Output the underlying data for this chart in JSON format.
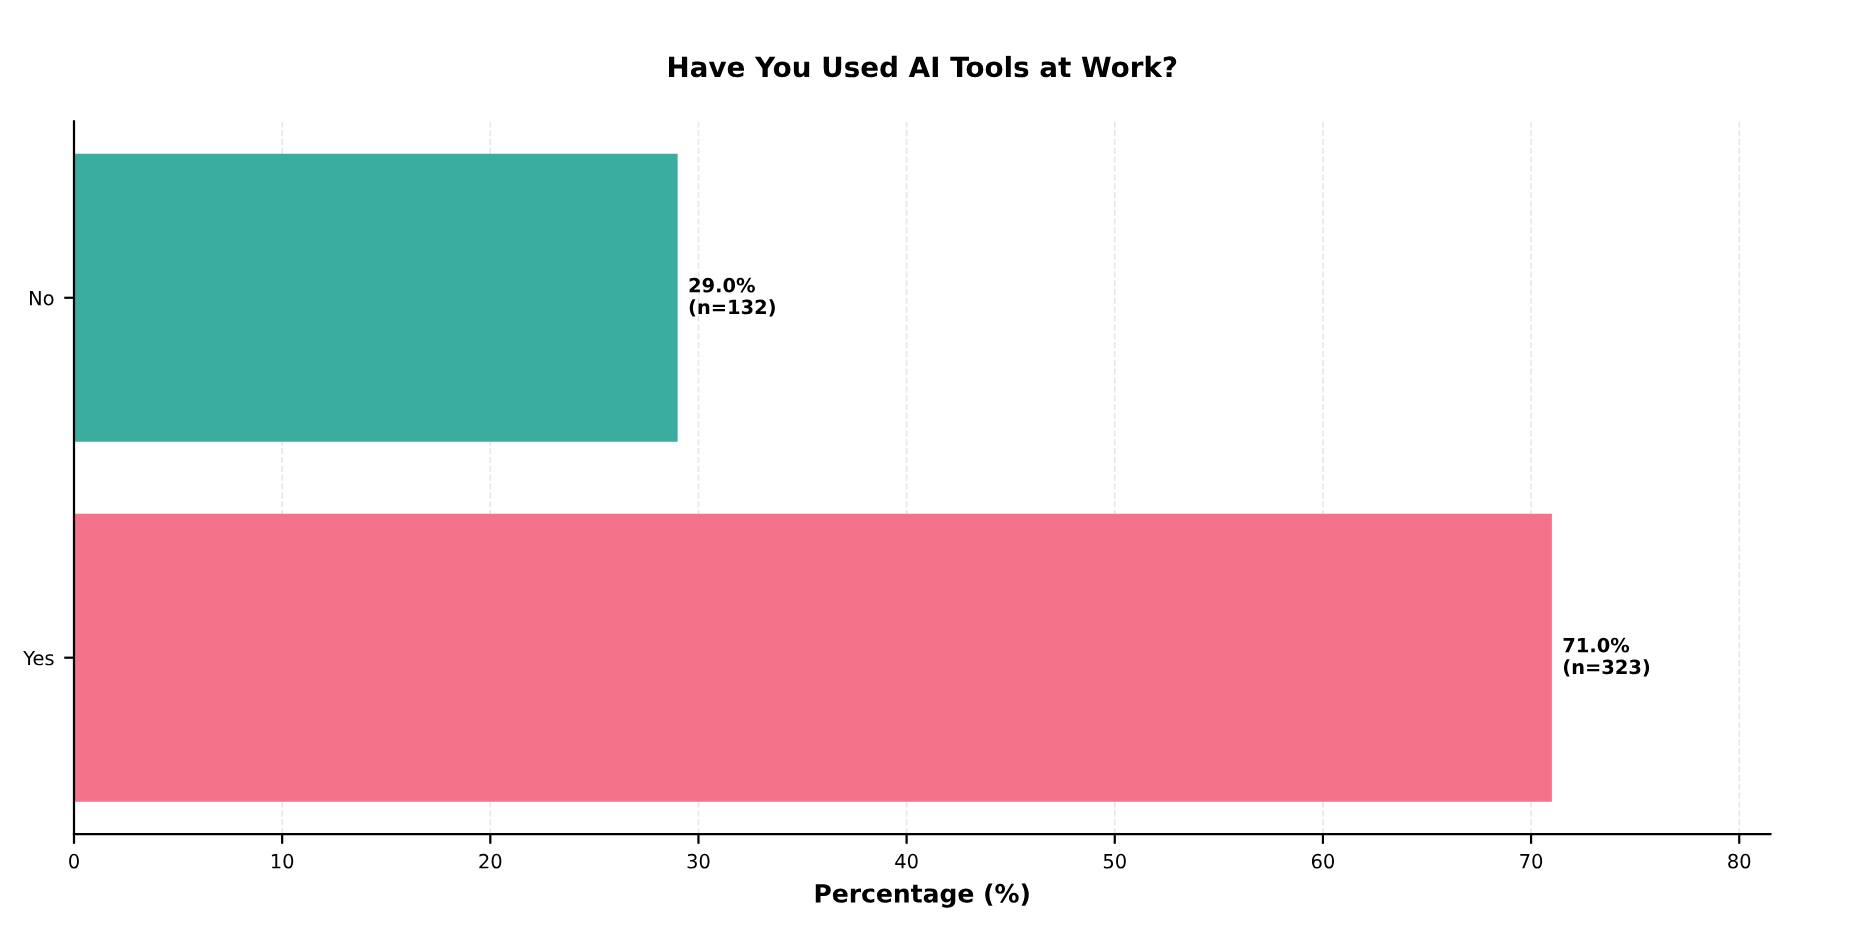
{
  "chart_data": {
    "type": "bar",
    "orientation": "horizontal",
    "title": "Have You Used AI Tools at Work?",
    "xlabel": "Percentage (%)",
    "categories": [
      "No",
      "Yes"
    ],
    "values": [
      29.0,
      71.0
    ],
    "colors": [
      "#3aada0",
      "#f4728a"
    ],
    "value_labels": [
      "29.0%\n(n=132)",
      "71.0%\n(n=323)"
    ],
    "xlim": [
      0,
      81.5
    ],
    "xticks": [
      0,
      10,
      20,
      30,
      40,
      50,
      60,
      70,
      80
    ],
    "grid": "x",
    "legend": false
  }
}
